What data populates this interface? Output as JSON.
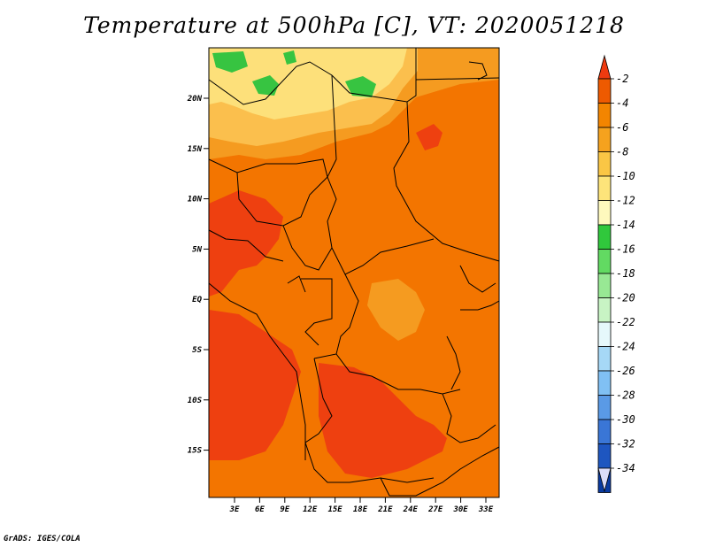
{
  "title": "Temperature at 500hPa [C], VT: 2020051218",
  "credit": "GrADS: IGES/COLA",
  "map": {
    "lon_labels": [
      "3E",
      "6E",
      "9E",
      "12E",
      "15E",
      "18E",
      "21E",
      "24E",
      "27E",
      "30E",
      "33E"
    ],
    "lat_labels": [
      "20N",
      "15N",
      "10N",
      "5N",
      "EQ",
      "5S",
      "10S",
      "15S"
    ],
    "colors": {
      "c_m2": "#ee4010",
      "c_m4": "#f37500",
      "c_m6": "#f59b20",
      "c_m8": "#fbbf4d",
      "c_m10": "#fde07a",
      "c_m12": "#fef6b0",
      "c_green": "#37c441",
      "border": "#000000"
    }
  },
  "colorbar": {
    "labels": [
      "-2",
      "-4",
      "-6",
      "-8",
      "-10",
      "-12",
      "-14",
      "-16",
      "-18",
      "-20",
      "-22",
      "-24",
      "-26",
      "-28",
      "-30",
      "-32",
      "-34"
    ],
    "colors": [
      "#ee5a00",
      "#f38500",
      "#f5a21e",
      "#fac645",
      "#fde47a",
      "#fef9bd",
      "#30c83c",
      "#62da62",
      "#98e894",
      "#c8f4c4",
      "#e6f8fb",
      "#a6d8f6",
      "#80c0f4",
      "#5a9ae6",
      "#3a76d6",
      "#1e56c0",
      "#0a3aa0",
      "#080c6e"
    ],
    "top_arrow_color": "#ee3a10",
    "bottom_arrow_color": "#dcdcf8"
  }
}
